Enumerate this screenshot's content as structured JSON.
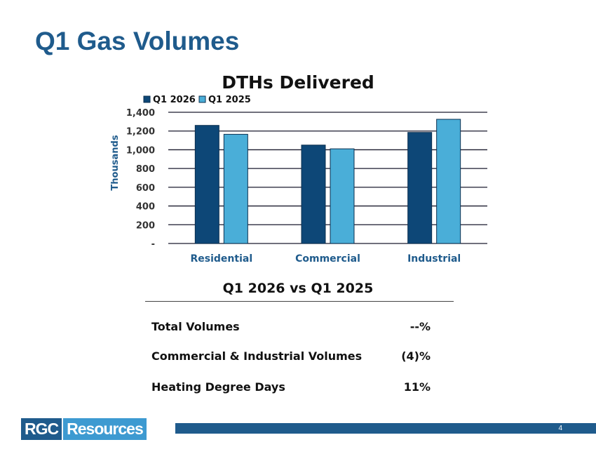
{
  "slide": {
    "title": "Q1 Gas Volumes",
    "page_number": "4"
  },
  "chart_data": {
    "type": "bar",
    "title": "DTHs Delivered",
    "ylabel": "Thousands",
    "xlabel": "",
    "categories": [
      "Residential",
      "Commercial",
      "Industrial"
    ],
    "series": [
      {
        "name": "Q1 2026",
        "values": [
          1260,
          1050,
          1185
        ],
        "color": "#0d4777"
      },
      {
        "name": "Q1 2025",
        "values": [
          1165,
          1010,
          1325
        ],
        "color": "#4aaed8"
      }
    ],
    "ylim": [
      0,
      1400
    ],
    "yticks": [
      0,
      200,
      400,
      600,
      800,
      1000,
      1200,
      1400
    ],
    "ytick_labels": [
      "-",
      "200",
      "400",
      "600",
      "800",
      "1,000",
      "1,200",
      "1,400"
    ],
    "grid": true,
    "legend_position": "top-left"
  },
  "comparison": {
    "title": "Q1 2026 vs Q1 2025",
    "rows": [
      {
        "label": "Total Volumes",
        "value": "--%"
      },
      {
        "label": "Commercial & Industrial Volumes",
        "value": "(4)%"
      },
      {
        "label": "Heating Degree Days",
        "value": "11%"
      }
    ]
  },
  "logo": {
    "part1": "RGC",
    "part2": "Resources"
  }
}
